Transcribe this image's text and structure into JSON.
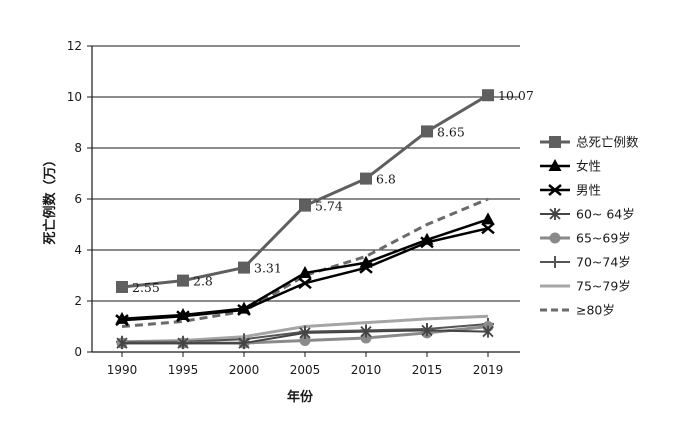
{
  "chart_data": {
    "type": "line",
    "title": "",
    "xlabel": "年份",
    "ylabel": "死亡例数（万）",
    "categories": [
      "1990",
      "1995",
      "2000",
      "2005",
      "2010",
      "2015",
      "2019"
    ],
    "ylim": [
      0,
      12
    ],
    "yticks": [
      "0",
      "2",
      "4",
      "6",
      "8",
      "10",
      "12"
    ],
    "grid": "horizontal",
    "legend": "right",
    "series": [
      {
        "name": "总死亡例数",
        "values": [
          2.55,
          2.8,
          3.31,
          5.74,
          6.8,
          8.65,
          10.07
        ],
        "labels": [
          "2.55",
          "2.8",
          "3.31",
          "5.74",
          "6.8",
          "8.65",
          "10.07"
        ],
        "color": "#5f5f5f",
        "marker": "square",
        "dash": false,
        "width": 3
      },
      {
        "name": "女性",
        "values": [
          1.3,
          1.45,
          1.7,
          3.1,
          3.5,
          4.4,
          5.2
        ],
        "color": "#000000",
        "marker": "triangle",
        "dash": false,
        "width": 2.5
      },
      {
        "name": "男性",
        "values": [
          1.25,
          1.4,
          1.65,
          2.7,
          3.3,
          4.3,
          4.85
        ],
        "color": "#000000",
        "marker": "x",
        "dash": false,
        "width": 2.5
      },
      {
        "name": "60~ 64岁",
        "values": [
          0.35,
          0.35,
          0.35,
          0.75,
          0.8,
          0.85,
          0.8
        ],
        "color": "#444444",
        "marker": "asterisk",
        "dash": false,
        "width": 2
      },
      {
        "name": "65~69岁",
        "values": [
          0.35,
          0.35,
          0.35,
          0.45,
          0.55,
          0.75,
          1.0
        ],
        "color": "#8a8a8a",
        "marker": "circle",
        "dash": false,
        "width": 3
      },
      {
        "name": "70~74岁",
        "values": [
          0.4,
          0.4,
          0.5,
          0.8,
          0.85,
          0.9,
          1.1
        ],
        "color": "#555555",
        "marker": "plus",
        "dash": false,
        "width": 2
      },
      {
        "name": "75~79岁",
        "values": [
          0.4,
          0.45,
          0.6,
          1.0,
          1.15,
          1.3,
          1.4
        ],
        "color": "#a5a5a5",
        "marker": "none",
        "dash": false,
        "width": 3
      },
      {
        "name": "≥80岁",
        "values": [
          1.0,
          1.2,
          1.6,
          3.0,
          3.75,
          5.0,
          6.0
        ],
        "color": "#6a6a6a",
        "marker": "none",
        "dash": true,
        "width": 3
      }
    ]
  }
}
